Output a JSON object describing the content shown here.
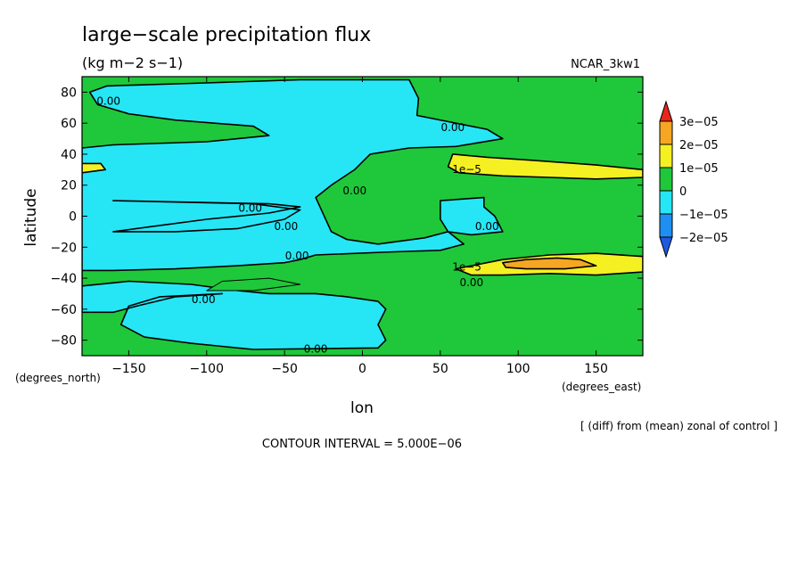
{
  "title": "large−scale precipitation flux",
  "units": "(kg m−2 s−1)",
  "model": "NCAR_3kw1",
  "footnote": "[ (diff) from (mean) zonal of control ]",
  "contour_interval": "CONTOUR INTERVAL = 5.000E−06",
  "chart_data": {
    "type": "heatmap",
    "xlabel": "lon",
    "ylabel": "latitude",
    "x_unit_label": "(degrees_east)",
    "y_unit_label": "(degrees_north)",
    "xlim": [
      -180,
      180
    ],
    "ylim": [
      -90,
      90
    ],
    "x_ticks": [
      {
        "value": -150,
        "label": "−150"
      },
      {
        "value": -100,
        "label": "−100"
      },
      {
        "value": -50,
        "label": "−50"
      },
      {
        "value": 0,
        "label": "0"
      },
      {
        "value": 50,
        "label": "50"
      },
      {
        "value": 100,
        "label": "100"
      },
      {
        "value": 150,
        "label": "150"
      }
    ],
    "y_ticks": [
      {
        "value": 80,
        "label": "80"
      },
      {
        "value": 60,
        "label": "60"
      },
      {
        "value": 40,
        "label": "40"
      },
      {
        "value": 20,
        "label": "20"
      },
      {
        "value": 0,
        "label": "0"
      },
      {
        "value": -20,
        "label": "−20"
      },
      {
        "value": -40,
        "label": "−40"
      },
      {
        "value": -60,
        "label": "−60"
      },
      {
        "value": -80,
        "label": "−80"
      }
    ],
    "colorbar": {
      "labels": [
        "3e−05",
        "2e−05",
        "1e−05",
        "0",
        "−1e−05",
        "−2e−05"
      ],
      "colors": [
        "#e8261a",
        "#f5a623",
        "#f5f022",
        "#1fc83a",
        "#26e6f5",
        "#1e8ff0",
        "#1c5ae0"
      ]
    },
    "background_color": "#1fc83a",
    "regions": [
      {
        "name": "arctic-negative",
        "color": "#26e6f5",
        "pts": [
          [
            -164,
            84
          ],
          [
            -100,
            86
          ],
          [
            -40,
            88
          ],
          [
            30,
            88
          ],
          [
            36,
            76
          ],
          [
            35,
            65
          ],
          [
            60,
            60
          ],
          [
            80,
            56
          ],
          [
            90,
            50
          ],
          [
            60,
            45
          ],
          [
            30,
            44
          ],
          [
            5,
            40
          ],
          [
            -5,
            30
          ],
          [
            -20,
            20
          ],
          [
            -30,
            12
          ],
          [
            -20,
            -10
          ],
          [
            -10,
            -15
          ],
          [
            10,
            -18
          ],
          [
            40,
            -14
          ],
          [
            55,
            -10
          ],
          [
            65,
            -18
          ],
          [
            50,
            -22
          ],
          [
            20,
            -23
          ],
          [
            -30,
            -25
          ],
          [
            -40,
            -28
          ],
          [
            -50,
            -30
          ],
          [
            -80,
            -32
          ],
          [
            -120,
            -34
          ],
          [
            -160,
            -35
          ],
          [
            -180,
            -35
          ],
          [
            -180,
            -45
          ],
          [
            -150,
            -42
          ],
          [
            -110,
            -44
          ],
          [
            -80,
            -48
          ],
          [
            -60,
            -50
          ],
          [
            -30,
            -50
          ],
          [
            -10,
            -52
          ],
          [
            10,
            -55
          ],
          [
            15,
            -60
          ],
          [
            10,
            -70
          ],
          [
            15,
            -80
          ],
          [
            10,
            -85
          ],
          [
            -70,
            -86
          ],
          [
            -110,
            -82
          ],
          [
            -140,
            -78
          ],
          [
            -155,
            -70
          ],
          [
            -150,
            -58
          ],
          [
            -130,
            -52
          ],
          [
            -90,
            -50
          ],
          [
            -120,
            -52
          ],
          [
            -145,
            -58
          ],
          [
            -160,
            -62
          ],
          [
            -180,
            -62
          ],
          [
            -180,
            44
          ],
          [
            -160,
            46
          ],
          [
            -100,
            48
          ],
          [
            -60,
            52
          ],
          [
            -70,
            58
          ],
          [
            -120,
            62
          ],
          [
            -150,
            66
          ],
          [
            -170,
            72
          ],
          [
            -175,
            80
          ]
        ]
      },
      {
        "name": "equatorial-negative-west",
        "color": "#26e6f5",
        "pts": [
          [
            -160,
            10
          ],
          [
            -60,
            8
          ],
          [
            -40,
            6
          ],
          [
            -60,
            2
          ],
          [
            -100,
            -2
          ],
          [
            -130,
            -6
          ],
          [
            -160,
            -10
          ],
          [
            -120,
            -10
          ],
          [
            -80,
            -8
          ],
          [
            -50,
            -2
          ],
          [
            -40,
            4
          ],
          [
            -70,
            8
          ]
        ]
      },
      {
        "name": "east-negative-patch",
        "color": "#26e6f5",
        "pts": [
          [
            50,
            10
          ],
          [
            78,
            12
          ],
          [
            78,
            6
          ],
          [
            85,
            0
          ],
          [
            90,
            -10
          ],
          [
            70,
            -12
          ],
          [
            55,
            -10
          ],
          [
            50,
            -2
          ]
        ]
      },
      {
        "name": "north-yellow-band",
        "color": "#f5f022",
        "pts": [
          [
            58,
            40
          ],
          [
            80,
            38
          ],
          [
            110,
            36
          ],
          [
            150,
            33
          ],
          [
            180,
            30
          ],
          [
            180,
            25
          ],
          [
            150,
            24
          ],
          [
            120,
            25
          ],
          [
            90,
            26
          ],
          [
            62,
            28
          ],
          [
            55,
            32
          ]
        ]
      },
      {
        "name": "west-edge-yellow",
        "color": "#f5f022",
        "pts": [
          [
            -180,
            34
          ],
          [
            -168,
            34
          ],
          [
            -165,
            30
          ],
          [
            -180,
            28
          ]
        ]
      },
      {
        "name": "south-yellow-band",
        "color": "#f5f022",
        "pts": [
          [
            60,
            -34
          ],
          [
            90,
            -28
          ],
          [
            120,
            -25
          ],
          [
            150,
            -24
          ],
          [
            180,
            -26
          ],
          [
            180,
            -36
          ],
          [
            150,
            -38
          ],
          [
            120,
            -37
          ],
          [
            90,
            -38
          ],
          [
            70,
            -38
          ]
        ]
      },
      {
        "name": "south-orange-core",
        "color": "#f5a623",
        "pts": [
          [
            90,
            -30
          ],
          [
            105,
            -28
          ],
          [
            125,
            -27
          ],
          [
            140,
            -28
          ],
          [
            150,
            -32
          ],
          [
            130,
            -34
          ],
          [
            105,
            -34
          ],
          [
            92,
            -33
          ]
        ]
      },
      {
        "name": "green-island-west",
        "color": "#1fc83a",
        "pts": [
          [
            -90,
            -42
          ],
          [
            -60,
            -40
          ],
          [
            -40,
            -44
          ],
          [
            -70,
            -48
          ],
          [
            -100,
            -48
          ]
        ]
      }
    ],
    "contour_labels": [
      {
        "text": "0.00",
        "lon": -163,
        "lat": 72
      },
      {
        "text": "0.00",
        "lon": 58,
        "lat": 55
      },
      {
        "text": "0.00",
        "lon": -5,
        "lat": 14
      },
      {
        "text": "0.00",
        "lon": -72,
        "lat": 3
      },
      {
        "text": "0.00",
        "lon": -49,
        "lat": -9
      },
      {
        "text": "0.00",
        "lon": -42,
        "lat": -28
      },
      {
        "text": "0.00",
        "lon": 80,
        "lat": -9
      },
      {
        "text": "0.00",
        "lon": -102,
        "lat": -56
      },
      {
        "text": "0.00",
        "lon": -30,
        "lat": -88
      },
      {
        "text": "0.00",
        "lon": 70,
        "lat": -45
      },
      {
        "text": "1e−5",
        "lon": 67,
        "lat": 28
      },
      {
        "text": "1e−5",
        "lon": 67,
        "lat": -35
      }
    ]
  }
}
